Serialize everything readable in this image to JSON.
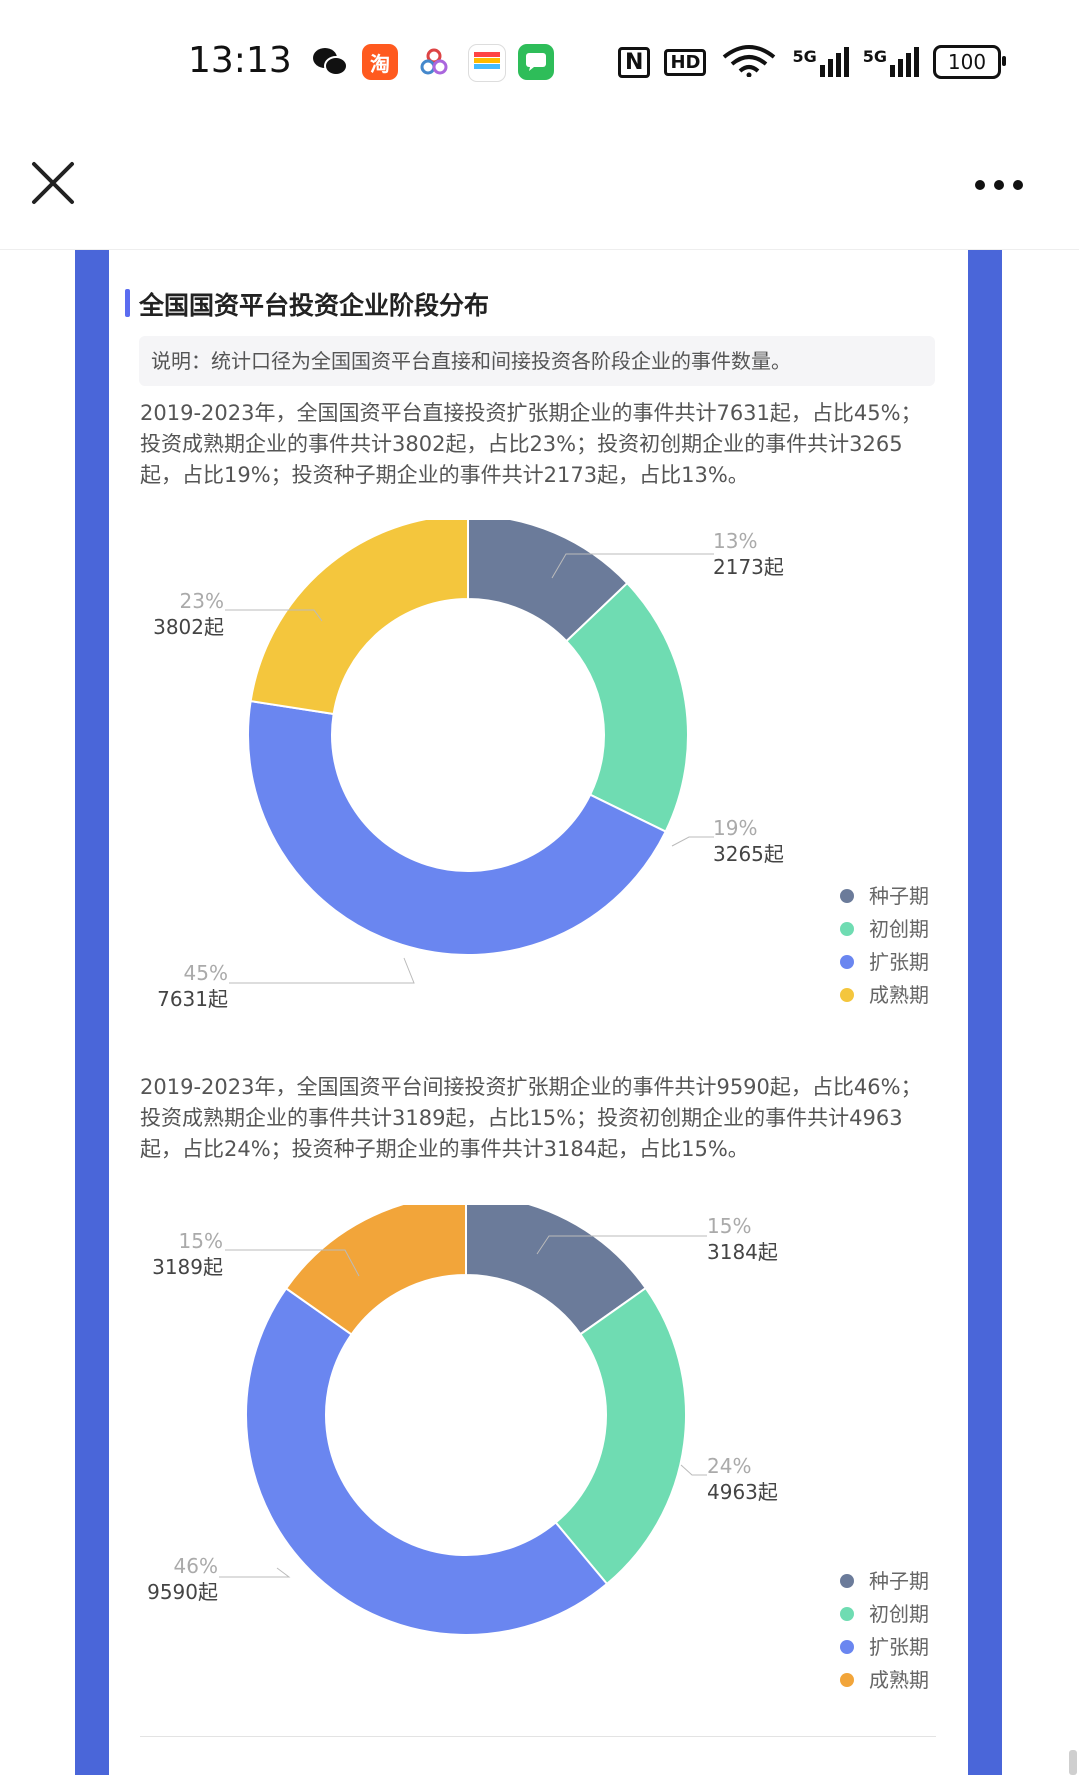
{
  "status": {
    "time": "13:13",
    "battery": "100",
    "net1": "5G",
    "net2": "5G",
    "hd": "HD",
    "nfc": "N",
    "taobao_glyph": "淘",
    "icons": [
      "wechat-icon",
      "taobao-icon",
      "app-icon",
      "wallet-icon",
      "messages-icon"
    ]
  },
  "section": {
    "title": "全国国资平台投资企业阶段分布",
    "note": "说明：统计口径为全国国资平台直接和间接投资各阶段企业的事件数量。"
  },
  "paragraphs": [
    [
      "2019-2023年，全国国资平台直接投资扩张期企业的事件共计7631起，占比45%；",
      "投资成熟期企业的事件共计3802起，占比23%；投资初创期企业的事件共计3265",
      "起，占比19%；投资种子期企业的事件共计2173起，占比13%。"
    ],
    [
      "2019-2023年，全国国资平台间接投资扩张期企业的事件共计9590起，占比46%；",
      "投资成熟期企业的事件共计3189起，占比15%；投资初创期企业的事件共计4963",
      "起，占比24%；投资种子期企业的事件共计3184起，占比15%。"
    ]
  ],
  "chart_data": [
    {
      "type": "pie",
      "donut": true,
      "categories": [
        "种子期",
        "初创期",
        "扩张期",
        "成熟期"
      ],
      "values": [
        2173,
        3265,
        7631,
        3802
      ],
      "percent_labels": [
        "13%",
        "19%",
        "45%",
        "23%"
      ],
      "value_labels": [
        "2173起",
        "3265起",
        "7631起",
        "3802起"
      ],
      "colors": [
        "#6b7b9a",
        "#6fdcb2",
        "#6a86f0",
        "#f4c63d"
      ],
      "legend": "bottom-right"
    },
    {
      "type": "pie",
      "donut": true,
      "categories": [
        "种子期",
        "初创期",
        "扩张期",
        "成熟期"
      ],
      "values": [
        3184,
        4963,
        9590,
        3189
      ],
      "percent_labels": [
        "15%",
        "24%",
        "46%",
        "15%"
      ],
      "value_labels": [
        "3184起",
        "4963起",
        "9590起",
        "3189起"
      ],
      "colors": [
        "#6b7b9a",
        "#6fdcb2",
        "#6a86f0",
        "#f2a53a"
      ],
      "legend": "bottom-right"
    }
  ]
}
